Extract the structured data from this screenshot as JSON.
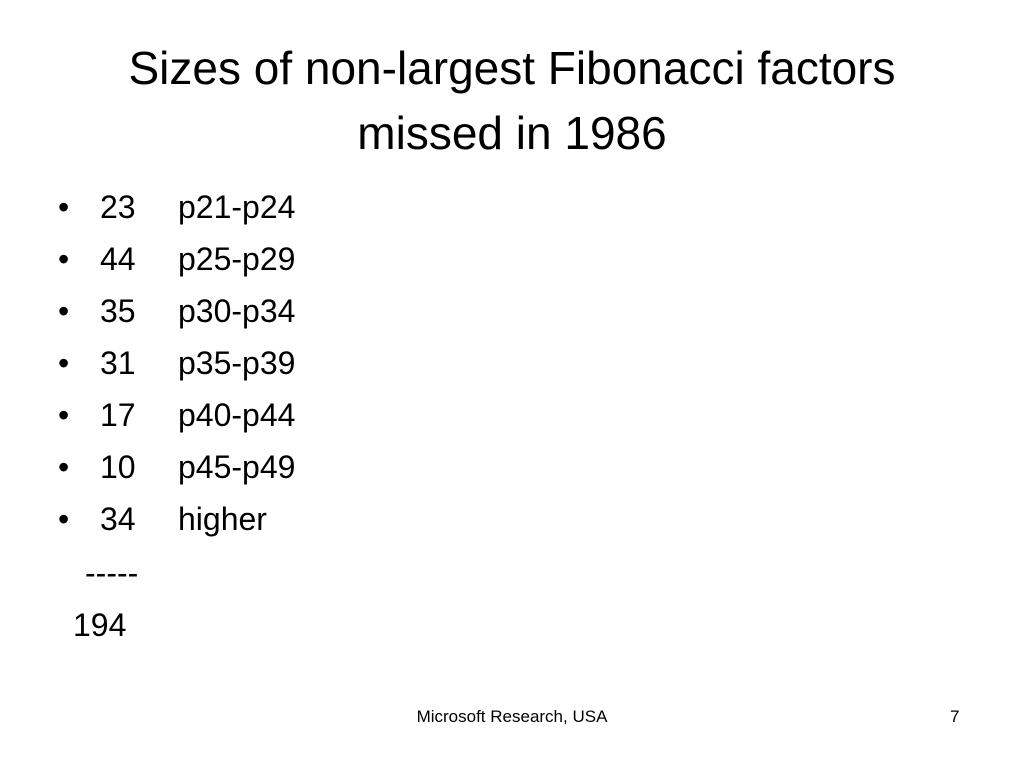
{
  "slide": {
    "title": "Sizes of non-largest Fibonacci factors missed in 1986",
    "items": [
      {
        "count": 23,
        "range": "p21-p24"
      },
      {
        "count": 44,
        "range": "p25-p29"
      },
      {
        "count": 35,
        "range": "p30-p34"
      },
      {
        "count": 31,
        "range": "p35-p39"
      },
      {
        "count": 17,
        "range": "p40-p44"
      },
      {
        "count": 10,
        "range": "p45-p49"
      },
      {
        "count": 34,
        "range": "higher"
      }
    ],
    "separator": "-----",
    "total": 194,
    "footer": "Microsoft Research, USA",
    "page_number": 7
  }
}
